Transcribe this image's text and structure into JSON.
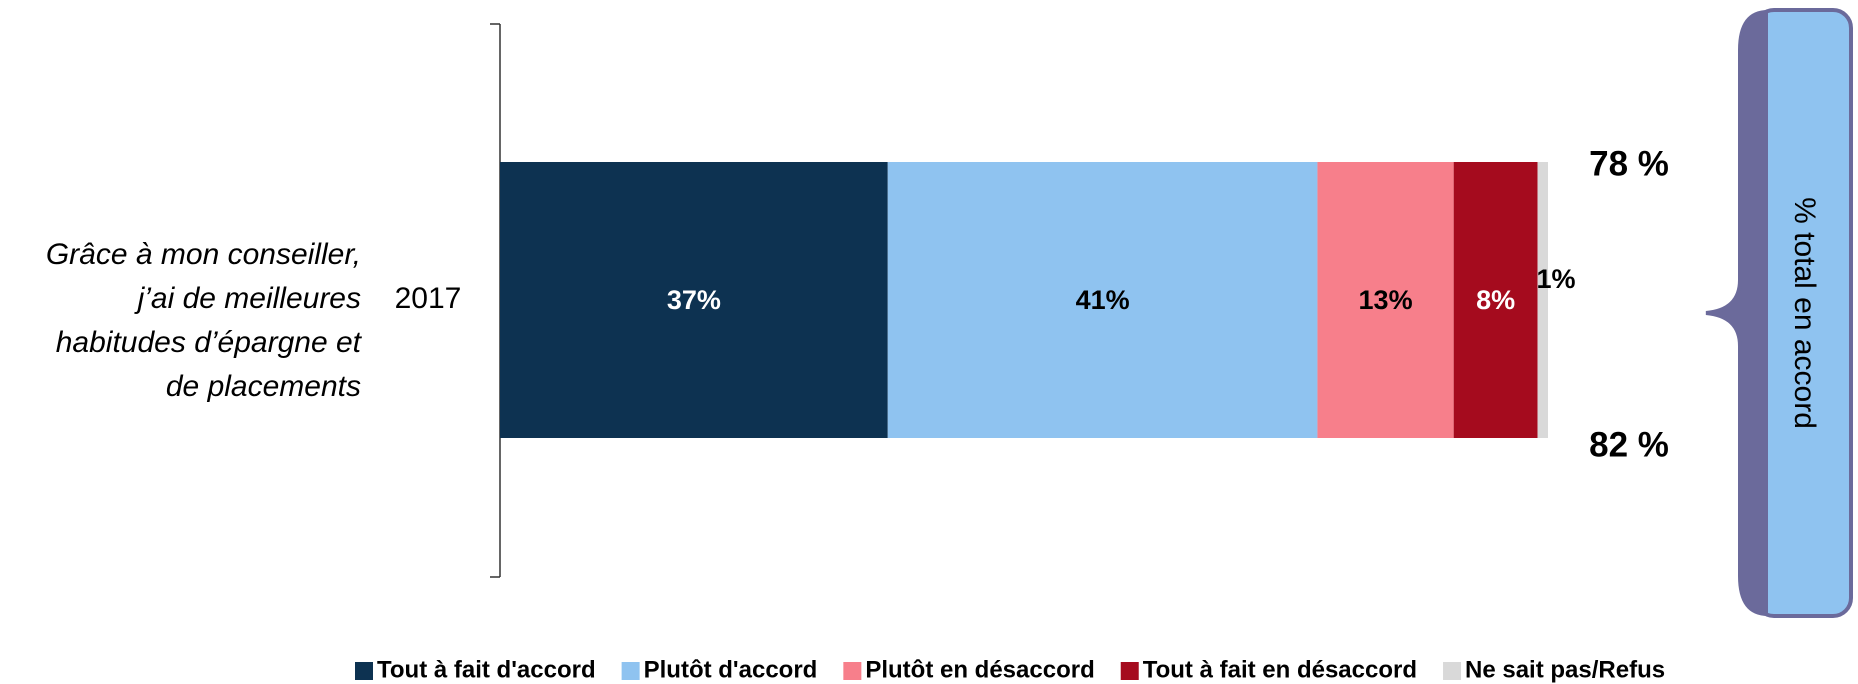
{
  "chart_data": {
    "type": "stacked-bar-horizontal",
    "categories": [
      "2017"
    ],
    "row_label_lines": [
      "Grâce à mon conseiller,",
      "j’ai de meilleures",
      "habitudes d’épargne et",
      "de placements"
    ],
    "series": [
      {
        "name": "Tout à fait d'accord",
        "color": "#0d3251",
        "label_color": "#ffffff",
        "values": [
          37
        ],
        "value_labels": [
          "37%"
        ]
      },
      {
        "name": "Plutôt d'accord",
        "color": "#8fc3f0",
        "label_color": "#000000",
        "values": [
          41
        ],
        "value_labels": [
          "41%"
        ]
      },
      {
        "name": "Plutôt en désaccord",
        "color": "#f77f8b",
        "label_color": "#000000",
        "values": [
          13
        ],
        "value_labels": [
          "13%"
        ]
      },
      {
        "name": "Tout à fait en désaccord",
        "color": "#a50b1e",
        "label_color": "#ffffff",
        "values": [
          8
        ],
        "value_labels": [
          "8%"
        ]
      },
      {
        "name": "Ne sait pas/Refus",
        "color": "#d9d9d9",
        "label_color": "#000000",
        "values": [
          1
        ],
        "value_labels": [
          "1%"
        ]
      }
    ],
    "annotations": {
      "top_total": "78 %",
      "bottom_total": "82 %",
      "bracket_label": "% total en accord"
    },
    "legend": "bottom"
  }
}
